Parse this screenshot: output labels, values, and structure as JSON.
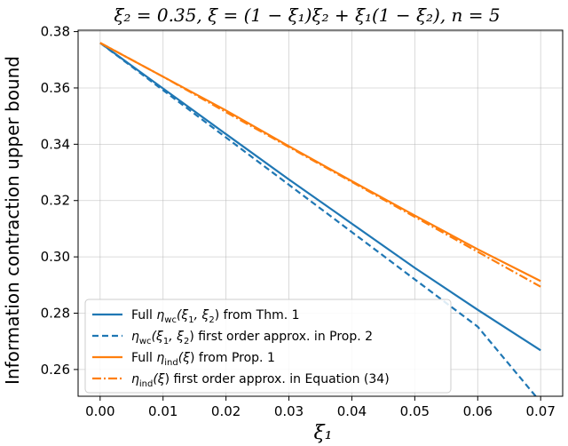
{
  "chart_data": {
    "type": "line",
    "title": "ξ₂ = 0.35, ξ = (1 − ξ₁)ξ₂ + ξ₁(1 − ξ₂), n = 5",
    "xlabel": "ξ₁",
    "ylabel": "Information contraction upper bound",
    "xlim": [
      -0.0035,
      0.0735
    ],
    "ylim": [
      0.2505,
      0.3805
    ],
    "xticks": [
      0.0,
      0.01,
      0.02,
      0.03,
      0.04,
      0.05,
      0.06,
      0.07
    ],
    "xtick_labels": [
      "0.00",
      "0.01",
      "0.02",
      "0.03",
      "0.04",
      "0.05",
      "0.06",
      "0.07"
    ],
    "yticks": [
      0.26,
      0.28,
      0.3,
      0.32,
      0.34,
      0.36,
      0.38
    ],
    "ytick_labels": [
      "0.26",
      "0.28",
      "0.30",
      "0.32",
      "0.34",
      "0.36",
      "0.38"
    ],
    "grid": true,
    "legend_position": "lower-left",
    "x": [
      0.0,
      0.01,
      0.02,
      0.03,
      0.04,
      0.05,
      0.06,
      0.07
    ],
    "series": [
      {
        "name": "Full η_wc(ξ₁, ξ₂) from Thm. 1",
        "color": "#1f77b4",
        "dash": "solid",
        "values": [
          0.376,
          0.3598,
          0.3436,
          0.3275,
          0.3118,
          0.2961,
          0.2812,
          0.2668
        ]
      },
      {
        "name": "η_wc(ξ₁, ξ₂) first order approx. in Prop. 2",
        "color": "#1f77b4",
        "dash": "dashed",
        "values": [
          0.376,
          0.3592,
          0.3424,
          0.3256,
          0.3088,
          0.292,
          0.2752,
          0.2484
        ]
      },
      {
        "name": "Full η_ind(ξ) from Prop. 1",
        "color": "#ff7f0e",
        "dash": "solid",
        "values": [
          0.376,
          0.364,
          0.352,
          0.3393,
          0.3269,
          0.3147,
          0.3027,
          0.2914
        ]
      },
      {
        "name": "η_ind(ξ) first order approx. in Equation (34)",
        "color": "#ff7f0e",
        "dash": "dashdot",
        "values": [
          0.376,
          0.364,
          0.3514,
          0.339,
          0.3266,
          0.3142,
          0.3018,
          0.2894
        ]
      }
    ]
  },
  "legend": [
    {
      "pre": "Full ",
      "sym": "η",
      "sub": "wc",
      "post": "(ξ",
      "sub2": "1",
      "mid": ", ξ",
      "sub3": "2",
      "tail": ") from Thm. 1"
    },
    {
      "pre": "",
      "sym": "η",
      "sub": "wc",
      "post": "(ξ",
      "sub2": "1",
      "mid": ", ξ",
      "sub3": "2",
      "tail": ") first order approx. in Prop. 2"
    },
    {
      "pre": "Full ",
      "sym": "η",
      "sub": "ind",
      "post": "(ξ",
      "sub2": "",
      "mid": "",
      "sub3": "",
      "tail": ") from Prop. 1"
    },
    {
      "pre": "",
      "sym": "η",
      "sub": "ind",
      "post": "(ξ",
      "sub2": "",
      "mid": "",
      "sub3": "",
      "tail": ") first order approx. in Equation (34)"
    }
  ]
}
